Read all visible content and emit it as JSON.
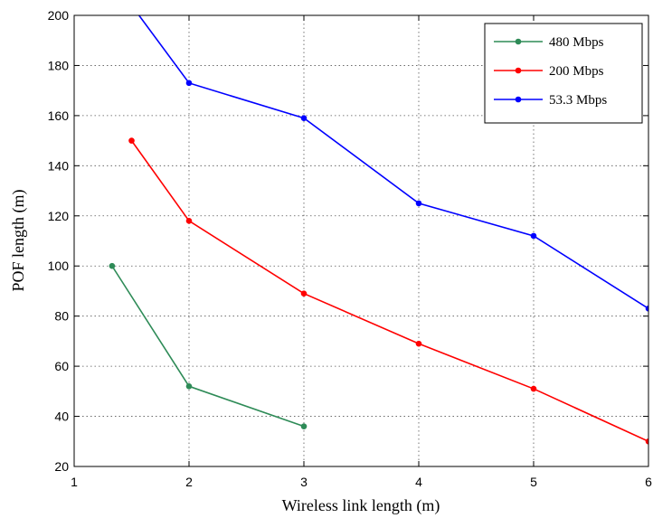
{
  "chart_data": {
    "type": "line",
    "xlabel": "Wireless link length (m)",
    "ylabel": "POF length (m)",
    "xlim": [
      1,
      6
    ],
    "ylim": [
      20,
      200
    ],
    "xticks": [
      1,
      2,
      3,
      4,
      5,
      6
    ],
    "yticks": [
      20,
      40,
      60,
      80,
      100,
      120,
      140,
      160,
      180,
      200
    ],
    "grid": true,
    "legend_position": "top-right",
    "series": [
      {
        "name": "480 Mbps",
        "color": "#2e8b57",
        "x": [
          1.33,
          2,
          3
        ],
        "y": [
          100,
          52,
          36
        ]
      },
      {
        "name": "200 Mbps",
        "color": "#ff0000",
        "x": [
          1.5,
          2,
          3,
          4,
          5,
          6
        ],
        "y": [
          150,
          118,
          89,
          69,
          51,
          30
        ]
      },
      {
        "name": "53.3 Mbps",
        "color": "#0000ff",
        "x": [
          1.5,
          2,
          3,
          4,
          5,
          6
        ],
        "y": [
          204,
          173,
          159,
          125,
          112,
          83
        ]
      }
    ]
  }
}
